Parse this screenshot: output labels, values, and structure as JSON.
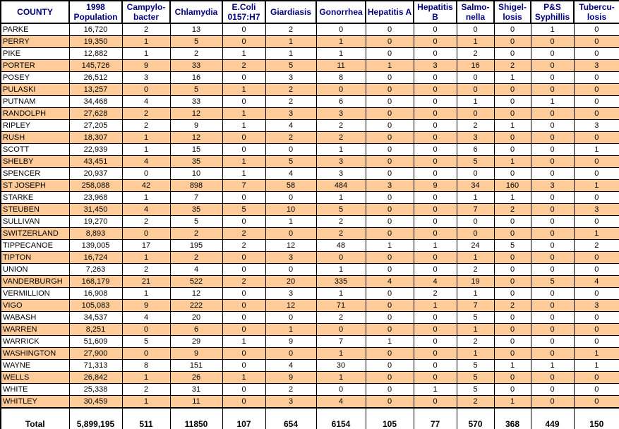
{
  "table": {
    "columns": [
      {
        "id": "county",
        "lines": [
          "COUNTY"
        ]
      },
      {
        "id": "population-1998",
        "lines": [
          "1998",
          "Population"
        ]
      },
      {
        "id": "campylobacter",
        "lines": [
          "Campylo-",
          "bacter"
        ]
      },
      {
        "id": "chlamydia",
        "lines": [
          "Chlamydia"
        ]
      },
      {
        "id": "ecoli-0157h7",
        "lines": [
          "E.Coli",
          "0157:H7"
        ]
      },
      {
        "id": "giardiasis",
        "lines": [
          "Giardiasis"
        ]
      },
      {
        "id": "gonorrhea",
        "lines": [
          "Gonorrhea"
        ]
      },
      {
        "id": "hepatitis-a",
        "lines": [
          "Hepatitis A"
        ]
      },
      {
        "id": "hepatitis-b",
        "lines": [
          "Hepatitis B"
        ]
      },
      {
        "id": "salmonella",
        "lines": [
          "Salmo-",
          "nella"
        ]
      },
      {
        "id": "shigellosis",
        "lines": [
          "Shigel-",
          "losis"
        ]
      },
      {
        "id": "ps-syphillis",
        "lines": [
          "P&S",
          "Syphillis"
        ]
      },
      {
        "id": "tuberculosis",
        "lines": [
          "Tubercu-",
          "losis"
        ]
      }
    ],
    "rows": [
      {
        "county": "PARKE",
        "values": [
          "16,720",
          "2",
          "13",
          "0",
          "2",
          "0",
          "0",
          "0",
          "0",
          "0",
          "1",
          "0"
        ]
      },
      {
        "county": "PERRY",
        "values": [
          "19,350",
          "1",
          "5",
          "0",
          "1",
          "1",
          "0",
          "0",
          "1",
          "0",
          "0",
          "0"
        ]
      },
      {
        "county": "PIKE",
        "values": [
          "12,882",
          "1",
          "2",
          "1",
          "1",
          "1",
          "0",
          "0",
          "2",
          "0",
          "0",
          "0"
        ]
      },
      {
        "county": "PORTER",
        "values": [
          "145,726",
          "9",
          "33",
          "2",
          "5",
          "11",
          "1",
          "3",
          "16",
          "2",
          "0",
          "3"
        ]
      },
      {
        "county": "POSEY",
        "values": [
          "26,512",
          "3",
          "16",
          "0",
          "3",
          "8",
          "0",
          "0",
          "0",
          "1",
          "0",
          "0"
        ]
      },
      {
        "county": "PULASKI",
        "values": [
          "13,257",
          "0",
          "5",
          "1",
          "2",
          "0",
          "0",
          "0",
          "0",
          "0",
          "0",
          "0"
        ]
      },
      {
        "county": "PUTNAM",
        "values": [
          "34,468",
          "4",
          "33",
          "0",
          "2",
          "6",
          "0",
          "0",
          "1",
          "0",
          "1",
          "0"
        ]
      },
      {
        "county": "RANDOLPH",
        "values": [
          "27,628",
          "2",
          "12",
          "1",
          "3",
          "3",
          "0",
          "0",
          "0",
          "0",
          "0",
          "0"
        ]
      },
      {
        "county": "RIPLEY",
        "values": [
          "27,205",
          "2",
          "9",
          "1",
          "4",
          "2",
          "0",
          "0",
          "2",
          "1",
          "0",
          "3"
        ]
      },
      {
        "county": "RUSH",
        "values": [
          "18,307",
          "1",
          "12",
          "0",
          "2",
          "2",
          "0",
          "0",
          "3",
          "0",
          "0",
          "0"
        ]
      },
      {
        "county": "SCOTT",
        "values": [
          "22,939",
          "1",
          "15",
          "0",
          "0",
          "1",
          "0",
          "0",
          "6",
          "0",
          "0",
          "1"
        ]
      },
      {
        "county": "SHELBY",
        "values": [
          "43,451",
          "4",
          "35",
          "1",
          "5",
          "3",
          "0",
          "0",
          "5",
          "1",
          "0",
          "0"
        ]
      },
      {
        "county": "SPENCER",
        "values": [
          "20,937",
          "0",
          "10",
          "1",
          "4",
          "3",
          "0",
          "0",
          "0",
          "0",
          "0",
          "0"
        ]
      },
      {
        "county": "ST JOSEPH",
        "values": [
          "258,088",
          "42",
          "898",
          "7",
          "58",
          "484",
          "3",
          "9",
          "34",
          "160",
          "3",
          "1"
        ]
      },
      {
        "county": "STARKE",
        "values": [
          "23,968",
          "1",
          "7",
          "0",
          "0",
          "1",
          "0",
          "0",
          "1",
          "1",
          "0",
          "0"
        ]
      },
      {
        "county": "STEUBEN",
        "values": [
          "31,450",
          "4",
          "35",
          "5",
          "10",
          "5",
          "0",
          "0",
          "7",
          "2",
          "0",
          "3"
        ]
      },
      {
        "county": "SULLIVAN",
        "values": [
          "19,270",
          "2",
          "5",
          "0",
          "1",
          "2",
          "0",
          "0",
          "0",
          "0",
          "0",
          "0"
        ]
      },
      {
        "county": "SWITZERLAND",
        "values": [
          "8,893",
          "0",
          "2",
          "2",
          "0",
          "2",
          "0",
          "0",
          "0",
          "0",
          "0",
          "1"
        ]
      },
      {
        "county": "TIPPECANOE",
        "values": [
          "139,005",
          "17",
          "195",
          "2",
          "12",
          "48",
          "1",
          "1",
          "24",
          "5",
          "0",
          "2"
        ]
      },
      {
        "county": "TIPTON",
        "values": [
          "16,724",
          "1",
          "2",
          "0",
          "3",
          "0",
          "0",
          "0",
          "1",
          "0",
          "0",
          "0"
        ]
      },
      {
        "county": "UNION",
        "values": [
          "7,263",
          "2",
          "4",
          "0",
          "0",
          "1",
          "0",
          "0",
          "2",
          "0",
          "0",
          "0"
        ]
      },
      {
        "county": "VANDERBURGH",
        "values": [
          "168,179",
          "21",
          "522",
          "2",
          "20",
          "335",
          "4",
          "4",
          "19",
          "0",
          "5",
          "4"
        ]
      },
      {
        "county": "VERMILLION",
        "values": [
          "16,908",
          "1",
          "12",
          "0",
          "3",
          "1",
          "0",
          "2",
          "1",
          "0",
          "0",
          "0"
        ]
      },
      {
        "county": "VIGO",
        "values": [
          "105,083",
          "9",
          "222",
          "0",
          "12",
          "71",
          "0",
          "1",
          "7",
          "2",
          "0",
          "3"
        ]
      },
      {
        "county": "WABASH",
        "values": [
          "34,537",
          "4",
          "20",
          "0",
          "0",
          "2",
          "0",
          "0",
          "5",
          "0",
          "0",
          "0"
        ]
      },
      {
        "county": "WARREN",
        "values": [
          "8,251",
          "0",
          "6",
          "0",
          "1",
          "0",
          "0",
          "0",
          "1",
          "0",
          "0",
          "0"
        ]
      },
      {
        "county": "WARRICK",
        "values": [
          "51,609",
          "5",
          "29",
          "1",
          "9",
          "7",
          "1",
          "0",
          "2",
          "0",
          "0",
          "0"
        ]
      },
      {
        "county": "WASHINGTON",
        "values": [
          "27,900",
          "0",
          "9",
          "0",
          "0",
          "1",
          "0",
          "0",
          "1",
          "0",
          "0",
          "1"
        ]
      },
      {
        "county": "WAYNE",
        "values": [
          "71,313",
          "8",
          "151",
          "0",
          "4",
          "30",
          "0",
          "0",
          "5",
          "1",
          "1",
          "1"
        ]
      },
      {
        "county": "WELLS",
        "values": [
          "26,842",
          "1",
          "26",
          "1",
          "9",
          "1",
          "0",
          "0",
          "5",
          "0",
          "0",
          "0"
        ]
      },
      {
        "county": "WHITE",
        "values": [
          "25,338",
          "2",
          "31",
          "0",
          "2",
          "0",
          "0",
          "1",
          "5",
          "0",
          "0",
          "0"
        ]
      },
      {
        "county": "WHITLEY",
        "values": [
          "30,459",
          "1",
          "11",
          "0",
          "3",
          "4",
          "0",
          "0",
          "2",
          "1",
          "0",
          "0"
        ]
      }
    ],
    "total": {
      "label": "Total",
      "values": [
        "5,899,195",
        "511",
        "11850",
        "107",
        "654",
        "6154",
        "105",
        "77",
        "570",
        "368",
        "449",
        "150"
      ]
    }
  },
  "colors": {
    "band_fill": "#ffcc99",
    "header_text": "#000080",
    "border": "#000000",
    "body_text": "#000000"
  }
}
